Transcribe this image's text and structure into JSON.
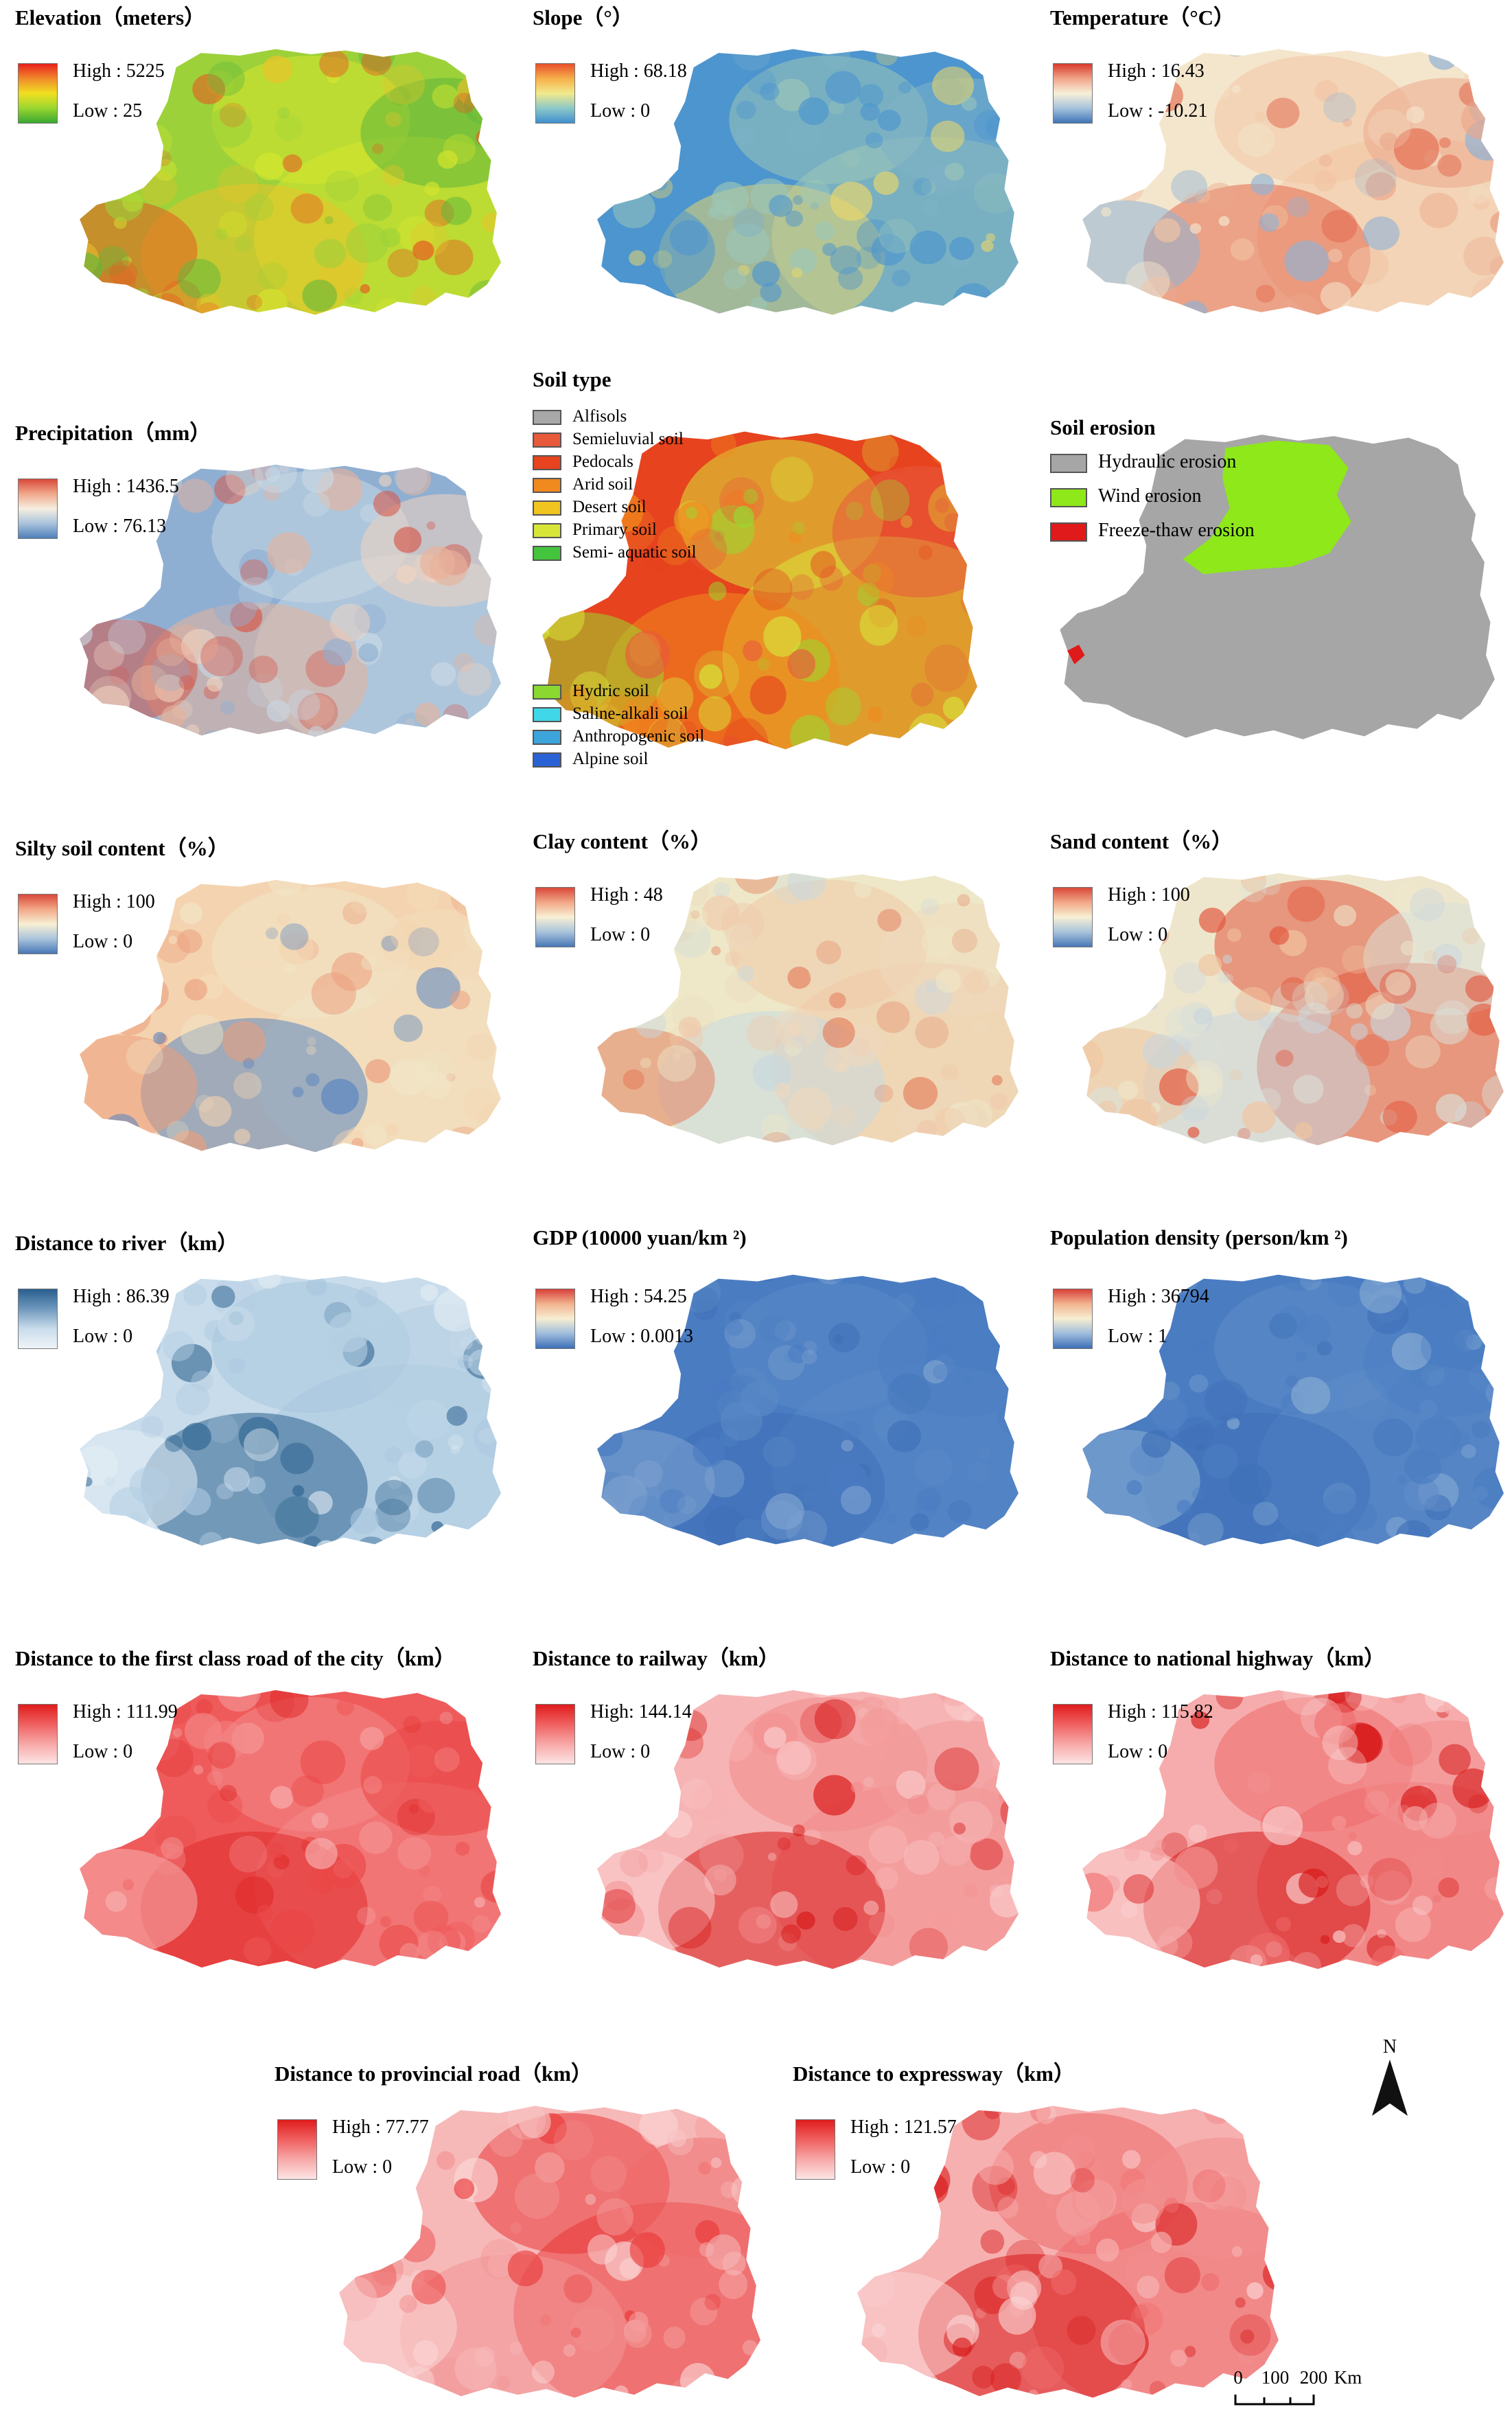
{
  "panels": [
    {
      "id": "elevation",
      "title": "Elevation（meters）",
      "high": "High : 5225",
      "low": "Low : 25",
      "ramp": [
        "#e8201c",
        "#f08a2a",
        "#f0e020",
        "#9ad630",
        "#39a832"
      ],
      "fill": [
        "#9cd13a",
        "#d7e62e",
        "#e9c32a",
        "#e75a21",
        "#61b73a"
      ]
    },
    {
      "id": "slope",
      "title": "Slope（°）",
      "high": "High : 68.18",
      "low": "Low : 0",
      "ramp": [
        "#e8502b",
        "#f6b04a",
        "#f2ea8c",
        "#8dc8c7",
        "#3f8fcf"
      ],
      "fill": [
        "#4d95cf",
        "#9dc7b8",
        "#e8d66d",
        "#4d95cf",
        "#7fb2c6"
      ]
    },
    {
      "id": "temperature",
      "title": "Temperature（°C）",
      "high": "High : 16.43",
      "low": "Low : -10.21",
      "ramp": [
        "#d83a2a",
        "#f0a58a",
        "#f8f0d8",
        "#a7c3dc",
        "#3f75b8"
      ],
      "fill": [
        "#f4e6cc",
        "#f2c4a4",
        "#e36a4f",
        "#8fb2d6",
        "#eba88c"
      ]
    },
    {
      "id": "precipitation",
      "title": "Precipitation（mm）",
      "high": "High : 1436.5",
      "low": "Low : 76.13",
      "ramp": [
        "#d84a3a",
        "#f0a88c",
        "#f6efe0",
        "#a8c2dc",
        "#4f7fb8"
      ],
      "fill": [
        "#8fafd2",
        "#c9d8e4",
        "#e8b29a",
        "#d6584a",
        "#f2d4c0"
      ]
    },
    {
      "id": "silt",
      "title": "Silty soil content（%）",
      "high": "High : 100",
      "low": "Low : 0",
      "ramp": [
        "#d8483a",
        "#f2a888",
        "#f8f0d4",
        "#a9c3dc",
        "#4877b6"
      ],
      "fill": [
        "#f4d4b0",
        "#f1e6c8",
        "#5b86c0",
        "#ec9d7c",
        "#f3ddbb"
      ]
    },
    {
      "id": "clay",
      "title": "Clay content（%）",
      "high": "High : 48",
      "low": "Low : 0",
      "ramp": [
        "#d8483a",
        "#f2a888",
        "#f8f0d4",
        "#a9c3dc",
        "#4877b6"
      ],
      "fill": [
        "#eee8c8",
        "#f0c8a8",
        "#c8d8e0",
        "#e4805e",
        "#eed8bc"
      ]
    },
    {
      "id": "sand",
      "title": "Sand content（%）",
      "high": "High : 100",
      "low": "Low : 0",
      "ramp": [
        "#d8483a",
        "#f2a888",
        "#f8f0d4",
        "#a9c3dc",
        "#4877b6"
      ],
      "fill": [
        "#eee6cc",
        "#e2553c",
        "#c9d6de",
        "#f0c4a0",
        "#dbe0d8"
      ]
    },
    {
      "id": "river",
      "title": "Distance to river（km）",
      "high": "High : 86.39",
      "low": "Low : 0",
      "ramp": [
        "#2a5f8f",
        "#6f98bd",
        "#c9dceb",
        "#eef4f8"
      ],
      "fill": [
        "#c8dceb",
        "#a8c6de",
        "#2d6390",
        "#e4eef5",
        "#b4cee2"
      ]
    },
    {
      "id": "gdp",
      "title": "GDP (10000 yuan/km ²)",
      "high": "High : 54.25",
      "low": "Low : 0.0013",
      "ramp": [
        "#d8403a",
        "#f2b490",
        "#f6eed2",
        "#9fbcdc",
        "#3d6fb8"
      ],
      "fill": [
        "#4a7cc2",
        "#5a89c6",
        "#3f70b8",
        "#7fa3d0",
        "#4b7dc3"
      ]
    },
    {
      "id": "population",
      "title": "Population density (person/km ²)",
      "high": "High : 36794",
      "low": "Low : 1",
      "ramp": [
        "#d8403a",
        "#f2b490",
        "#f6eed2",
        "#9fbcdc",
        "#3d6fb8"
      ],
      "fill": [
        "#4a7cc2",
        "#5f8cc8",
        "#3f70b8",
        "#8aaed4",
        "#4b7dc3"
      ]
    },
    {
      "id": "cityroad",
      "title": "Distance to the first class road of the city（km）",
      "high": "High : 111.99",
      "low": "Low : 0",
      "ramp": [
        "#e01c1c",
        "#f06060",
        "#f7a8a8",
        "#fde4e4"
      ],
      "fill": [
        "#ef5b5b",
        "#f48a8a",
        "#e02a2a",
        "#f7b0b0",
        "#ea4646"
      ]
    },
    {
      "id": "railway",
      "title": "Distance to railway（km）",
      "high": "High: 144.14",
      "low": "Low : 0",
      "ramp": [
        "#e01c1c",
        "#f06060",
        "#f7a8a8",
        "#fde4e4"
      ],
      "fill": [
        "#f7b4b4",
        "#f28a8a",
        "#d81a1a",
        "#fbd0d0",
        "#f39a9a"
      ]
    },
    {
      "id": "highway",
      "title": "Distance to national highway（km）",
      "high": "High : 115.82",
      "low": "Low : 0",
      "ramp": [
        "#e01c1c",
        "#f06060",
        "#f7a8a8",
        "#fde4e4"
      ],
      "fill": [
        "#f6acac",
        "#ef6a6a",
        "#d61616",
        "#fbd2d2",
        "#f28e8e"
      ]
    },
    {
      "id": "provincial",
      "title": "Distance to provincial road（km）",
      "high": "High : 77.77",
      "low": "Low : 0",
      "ramp": [
        "#e01c1c",
        "#f06060",
        "#f7a8a8",
        "#fde4e4"
      ],
      "fill": [
        "#f7b8b8",
        "#ea3636",
        "#f39494",
        "#fbd6d6",
        "#ef6a6a"
      ]
    },
    {
      "id": "expressway",
      "title": "Distance to expressway（km）",
      "high": "High : 121.57",
      "low": "Low : 0",
      "ramp": [
        "#e01c1c",
        "#f06060",
        "#f7a8a8",
        "#fde4e4"
      ],
      "fill": [
        "#f7b0b0",
        "#ef6a6a",
        "#d81818",
        "#fbd4d4",
        "#f28e8e"
      ]
    }
  ],
  "soil": {
    "title": "Soil type",
    "legend_top": [
      {
        "label": "Alfisols",
        "color": "#a8a8a8"
      },
      {
        "label": "Semieluvial soil",
        "color": "#e85a3c"
      },
      {
        "label": "Pedocals",
        "color": "#e6431e"
      },
      {
        "label": "Arid soil",
        "color": "#f08a1e"
      },
      {
        "label": "Desert soil",
        "color": "#f2c420"
      },
      {
        "label": "Primary soil",
        "color": "#d8e63a"
      },
      {
        "label": "Semi- aquatic soil",
        "color": "#44c43c"
      }
    ],
    "legend_bottom": [
      {
        "label": "Hydric soil",
        "color": "#8ad830"
      },
      {
        "label": "Saline-alkali soil",
        "color": "#40d8e8"
      },
      {
        "label": "Anthropogenic soil",
        "color": "#3ea4dc"
      },
      {
        "label": "Alpine soil",
        "color": "#2a62d6"
      }
    ],
    "fill": [
      "#e6431e",
      "#d8e63a",
      "#f08a1e",
      "#9ad830",
      "#e85a3c"
    ]
  },
  "erosion": {
    "title": "Soil erosion",
    "legend": [
      {
        "label": "Hydraulic erosion",
        "color": "#a6a6a6"
      },
      {
        "label": "Wind erosion",
        "color": "#8ee81a"
      },
      {
        "label": "Freeze-thaw erosion",
        "color": "#e01a1a"
      }
    ]
  },
  "north_label": "N",
  "scale": {
    "ticks": [
      "0",
      "100",
      "200"
    ],
    "unit": "Km"
  }
}
